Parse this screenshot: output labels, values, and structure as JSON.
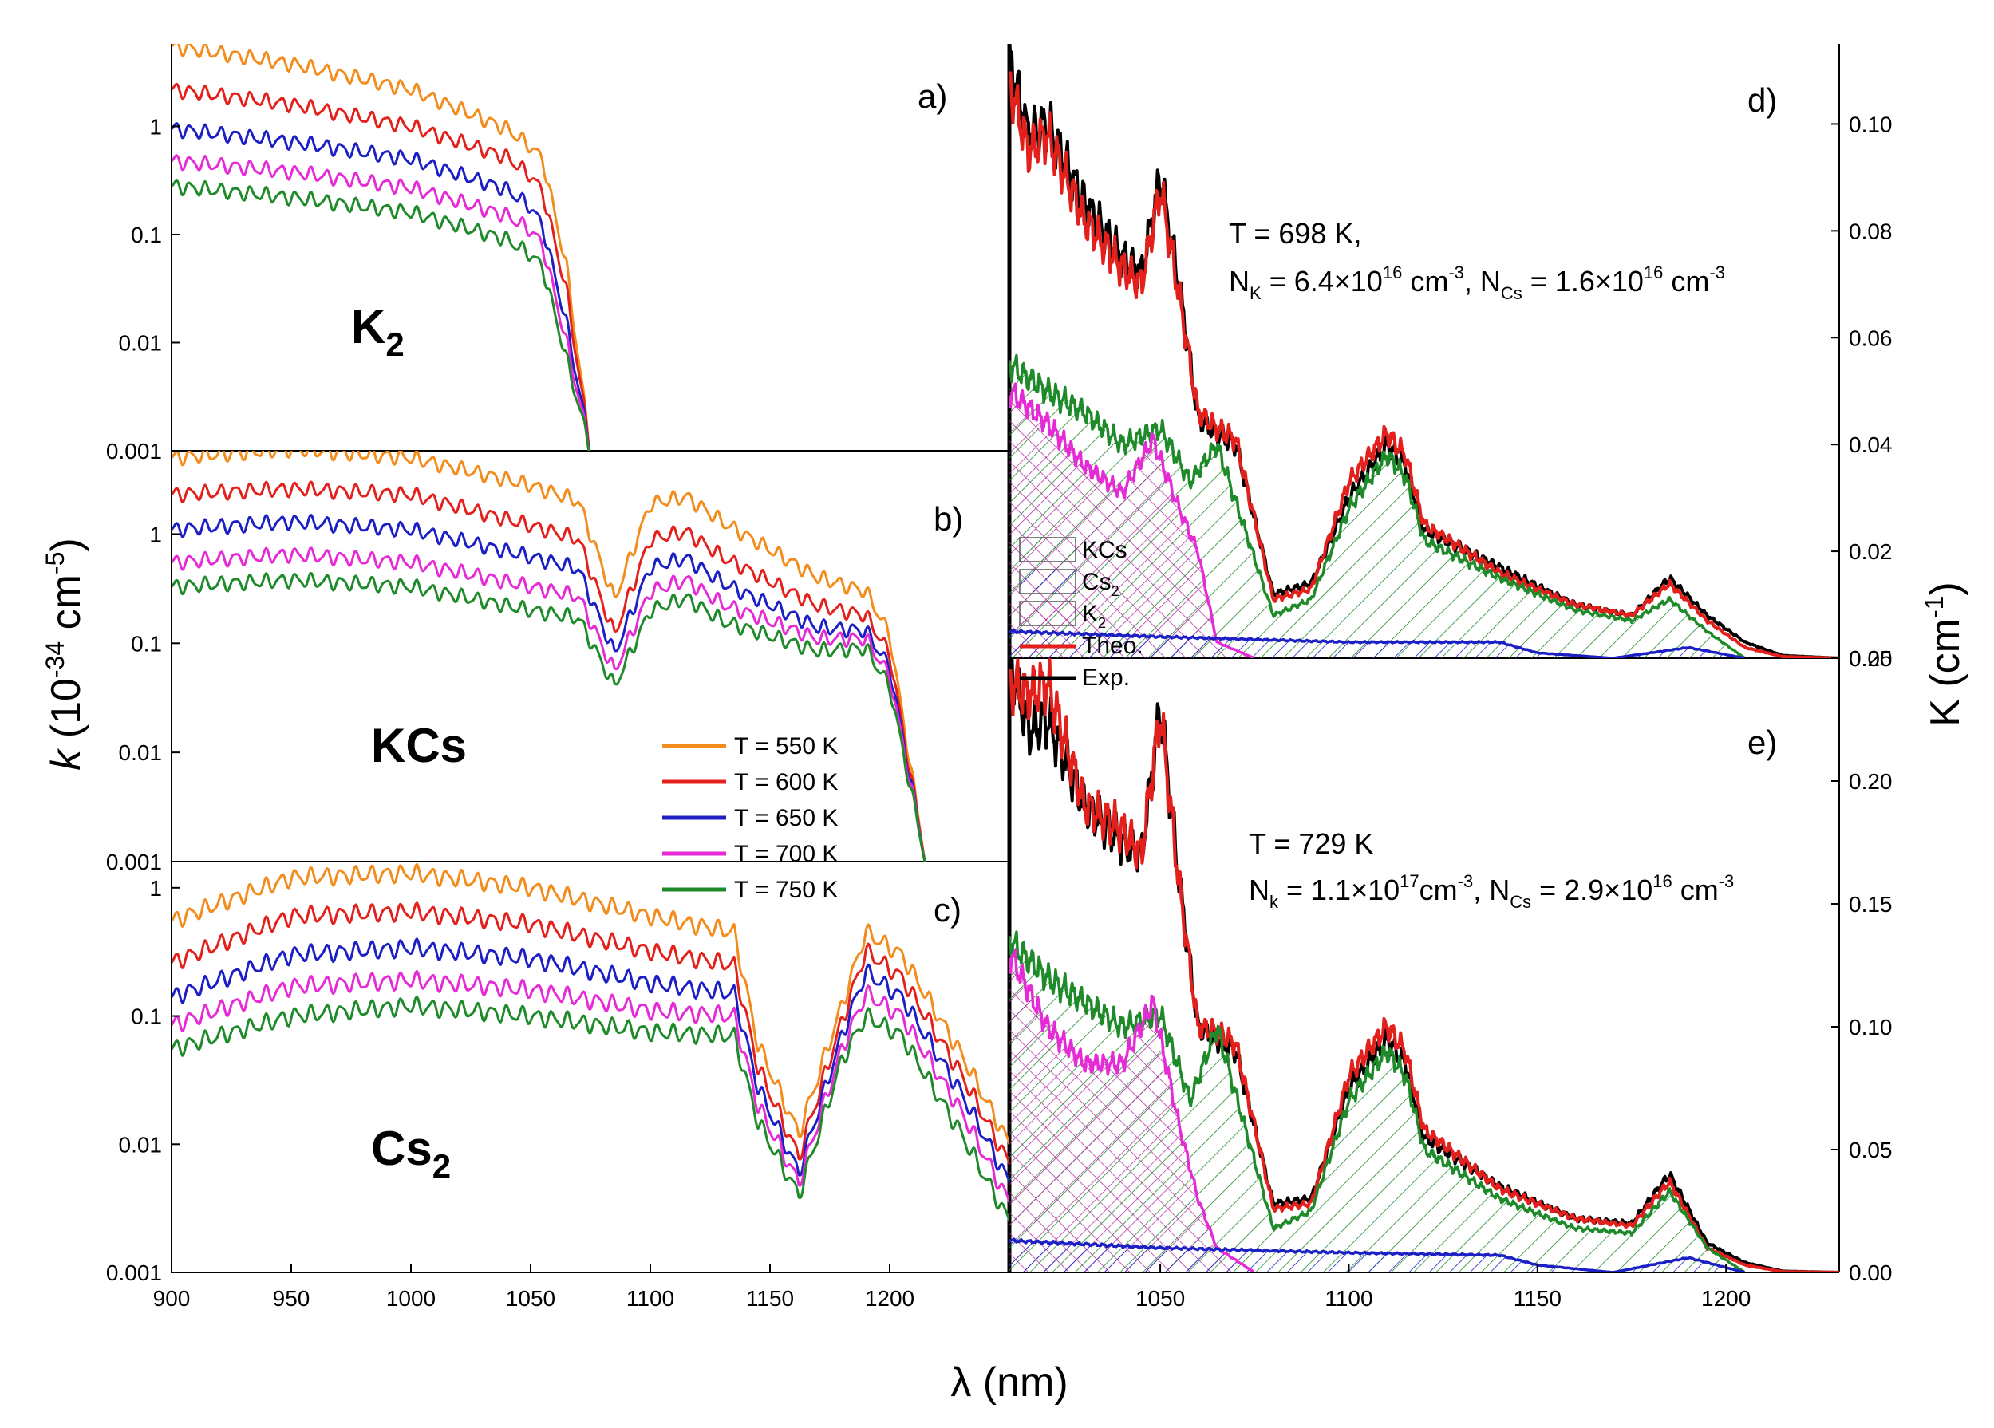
{
  "chart_data": [
    {
      "panel": "a)",
      "molecule_label": "K",
      "molecule_subscript": "2",
      "type": "line",
      "ylog": true,
      "xlim": [
        900,
        1250
      ],
      "ylim": [
        0.001,
        6
      ],
      "y_ticks": [
        "1",
        "0.1",
        "0.01",
        "0.001"
      ],
      "series": [
        {
          "name": "T = 550 K",
          "color": "#f28c1c",
          "x": [
            900,
            950,
            1000,
            1040,
            1050,
            1055,
            1065,
            1075
          ],
          "y": [
            5.5,
            3.8,
            2.2,
            0.95,
            0.65,
            0.5,
            0.05,
            0.001
          ]
        },
        {
          "name": "T = 600 K",
          "color": "#e3201b",
          "x": [
            900,
            950,
            1000,
            1040,
            1050,
            1055,
            1065,
            1075
          ],
          "y": [
            2.2,
            1.6,
            1.0,
            0.52,
            0.35,
            0.25,
            0.03,
            0.001
          ]
        },
        {
          "name": "T = 650 K",
          "color": "#1b1fc4",
          "x": [
            900,
            950,
            1000,
            1040,
            1050,
            1055,
            1065,
            1075
          ],
          "y": [
            0.95,
            0.72,
            0.5,
            0.26,
            0.18,
            0.12,
            0.015,
            0.001
          ]
        },
        {
          "name": "T = 700 K",
          "color": "#e52ad6",
          "x": [
            900,
            950,
            1000,
            1040,
            1050,
            1055,
            1065,
            1075
          ],
          "y": [
            0.48,
            0.38,
            0.27,
            0.15,
            0.11,
            0.08,
            0.01,
            0.001
          ]
        },
        {
          "name": "T = 750 K",
          "color": "#1f8a2a",
          "x": [
            900,
            950,
            1000,
            1040,
            1050,
            1055,
            1065,
            1075
          ],
          "y": [
            0.28,
            0.22,
            0.16,
            0.09,
            0.065,
            0.05,
            0.007,
            0.001
          ]
        }
      ]
    },
    {
      "panel": "b)",
      "molecule_label": "KCs",
      "type": "line",
      "ylog": true,
      "xlim": [
        900,
        1250
      ],
      "ylim": [
        0.001,
        6
      ],
      "y_ticks": [
        "1",
        "0.1",
        "0.01",
        "0.001"
      ],
      "legend": [
        "T = 550 K",
        "T = 600 K",
        "T = 650 K",
        "T = 700 K",
        "T = 750 K"
      ],
      "series": [
        {
          "name": "T = 550 K",
          "color": "#f28c1c",
          "x": [
            900,
            950,
            1000,
            1050,
            1070,
            1085,
            1100,
            1115,
            1130,
            1170,
            1190,
            1200,
            1215
          ],
          "y": [
            5.0,
            6.0,
            5.0,
            2.8,
            2.0,
            0.25,
            1.9,
            2.2,
            1.3,
            0.4,
            0.3,
            0.12,
            0.001
          ]
        },
        {
          "name": "T = 600 K",
          "color": "#e3201b",
          "x": [
            900,
            950,
            1000,
            1050,
            1070,
            1085,
            1100,
            1115,
            1130,
            1170,
            1190,
            1200,
            1215
          ],
          "y": [
            2.3,
            2.6,
            2.3,
            1.2,
            0.9,
            0.12,
            0.9,
            1.05,
            0.62,
            0.22,
            0.18,
            0.08,
            0.001
          ]
        },
        {
          "name": "T = 650 K",
          "color": "#1b1fc4",
          "x": [
            900,
            950,
            1000,
            1050,
            1070,
            1085,
            1100,
            1115,
            1130,
            1170,
            1190,
            1200,
            1215
          ],
          "y": [
            1.1,
            1.3,
            1.1,
            0.62,
            0.48,
            0.08,
            0.5,
            0.6,
            0.36,
            0.14,
            0.13,
            0.06,
            0.001
          ]
        },
        {
          "name": "T = 700 K",
          "color": "#e52ad6",
          "x": [
            900,
            950,
            1000,
            1050,
            1070,
            1085,
            1100,
            1115,
            1130,
            1170,
            1190,
            1200,
            1215
          ],
          "y": [
            0.55,
            0.65,
            0.55,
            0.33,
            0.27,
            0.055,
            0.3,
            0.38,
            0.23,
            0.11,
            0.11,
            0.05,
            0.001
          ]
        },
        {
          "name": "T = 750 K",
          "color": "#1f8a2a",
          "x": [
            900,
            950,
            1000,
            1050,
            1070,
            1085,
            1100,
            1115,
            1130,
            1170,
            1190,
            1200,
            1215
          ],
          "y": [
            0.33,
            0.38,
            0.33,
            0.2,
            0.17,
            0.04,
            0.2,
            0.26,
            0.16,
            0.085,
            0.09,
            0.04,
            0.001
          ]
        }
      ]
    },
    {
      "panel": "c)",
      "molecule_label": "Cs",
      "molecule_subscript": "2",
      "type": "line",
      "ylog": true,
      "xlim": [
        900,
        1250
      ],
      "ylim": [
        0.001,
        1.5
      ],
      "y_ticks": [
        "1",
        "0.1",
        "0.01",
        "0.001"
      ],
      "x_ticks": [
        "900",
        "950",
        "1000",
        "1050",
        "1100",
        "1150",
        "1200"
      ],
      "series": [
        {
          "name": "T = 550 K",
          "color": "#f28c1c",
          "x": [
            900,
            950,
            1000,
            1050,
            1100,
            1135,
            1145,
            1162,
            1180,
            1190,
            1205,
            1230,
            1250
          ],
          "y": [
            0.55,
            1.2,
            1.3,
            1.0,
            0.6,
            0.45,
            0.06,
            0.012,
            0.12,
            0.45,
            0.3,
            0.05,
            0.01
          ]
        },
        {
          "name": "T = 600 K",
          "color": "#e3201b",
          "x": [
            900,
            950,
            1000,
            1050,
            1100,
            1135,
            1145,
            1162,
            1180,
            1190,
            1205,
            1230,
            1250
          ],
          "y": [
            0.26,
            0.6,
            0.65,
            0.52,
            0.32,
            0.25,
            0.04,
            0.008,
            0.09,
            0.32,
            0.2,
            0.035,
            0.007
          ]
        },
        {
          "name": "T = 650 K",
          "color": "#1b1fc4",
          "x": [
            900,
            950,
            1000,
            1050,
            1100,
            1135,
            1145,
            1162,
            1180,
            1190,
            1205,
            1230,
            1250
          ],
          "y": [
            0.14,
            0.3,
            0.34,
            0.28,
            0.18,
            0.15,
            0.028,
            0.006,
            0.07,
            0.22,
            0.14,
            0.025,
            0.005
          ]
        },
        {
          "name": "T = 700 K",
          "color": "#e52ad6",
          "x": [
            900,
            950,
            1000,
            1050,
            1100,
            1135,
            1145,
            1162,
            1180,
            1190,
            1205,
            1230,
            1250
          ],
          "y": [
            0.085,
            0.17,
            0.19,
            0.16,
            0.11,
            0.1,
            0.02,
            0.005,
            0.055,
            0.15,
            0.1,
            0.018,
            0.0035
          ]
        },
        {
          "name": "T = 750 K",
          "color": "#1f8a2a",
          "x": [
            900,
            950,
            1000,
            1050,
            1100,
            1135,
            1145,
            1162,
            1180,
            1190,
            1205,
            1230,
            1250
          ],
          "y": [
            0.055,
            0.1,
            0.12,
            0.1,
            0.075,
            0.07,
            0.015,
            0.004,
            0.045,
            0.1,
            0.07,
            0.012,
            0.0025
          ]
        }
      ]
    },
    {
      "panel": "d)",
      "type": "line",
      "xlim": [
        1010,
        1230
      ],
      "ylim": [
        0,
        0.115
      ],
      "y_ticks": [
        "0.10",
        "0.08",
        "0.06",
        "0.04",
        "0.02",
        "0.00"
      ],
      "annotation": {
        "line1": "T = 698 K,",
        "N_sym": "N",
        "N_sub": "K",
        "N_eq": " = 6.4×10",
        "N_exp": "16",
        "N_unit": " cm",
        "N_unit_exp": "-3",
        "sep": ", N",
        "N2_sub": "Cs",
        "N2_eq": " = 1.6×10",
        "N2_exp": "16",
        "N2_unit": " cm",
        "N2_unit_exp": "-3"
      },
      "legend": [
        {
          "label": "KCs",
          "style": "hatch",
          "color": "#1f8a2a"
        },
        {
          "label": "Cs",
          "sub": "2",
          "style": "hatch",
          "color": "#1b1fc4"
        },
        {
          "label": "K",
          "sub": "2",
          "style": "crosshatch",
          "color": "#e52ad6"
        },
        {
          "label": "Theo.",
          "style": "line",
          "color": "#e3201b"
        },
        {
          "label": "Exp.",
          "style": "line",
          "color": "#000000"
        }
      ],
      "series": [
        {
          "name": "Exp.",
          "color": "#000000",
          "x": [
            1010,
            1015,
            1020,
            1030,
            1040,
            1045,
            1050,
            1055,
            1060,
            1065,
            1070,
            1080,
            1090,
            1100,
            1110,
            1115,
            1120,
            1140,
            1160,
            1175,
            1185,
            1195,
            1205,
            1215,
            1230
          ],
          "y": [
            0.112,
            0.098,
            0.1,
            0.085,
            0.075,
            0.072,
            0.09,
            0.07,
            0.045,
            0.042,
            0.04,
            0.012,
            0.014,
            0.03,
            0.04,
            0.036,
            0.024,
            0.017,
            0.01,
            0.008,
            0.015,
            0.008,
            0.003,
            0.0005,
            0.0
          ]
        },
        {
          "name": "Theo.",
          "color": "#e3201b",
          "x": [
            1010,
            1015,
            1020,
            1030,
            1040,
            1045,
            1050,
            1055,
            1060,
            1065,
            1070,
            1080,
            1090,
            1100,
            1110,
            1115,
            1120,
            1140,
            1160,
            1175,
            1185,
            1195,
            1205,
            1215,
            1230
          ],
          "y": [
            0.108,
            0.095,
            0.098,
            0.082,
            0.073,
            0.07,
            0.088,
            0.068,
            0.046,
            0.043,
            0.041,
            0.011,
            0.013,
            0.033,
            0.042,
            0.038,
            0.025,
            0.016,
            0.01,
            0.008,
            0.014,
            0.007,
            0.002,
            0.0003,
            0.0
          ]
        },
        {
          "name": "KCs",
          "color": "#1f8a2a",
          "x": [
            1010,
            1020,
            1030,
            1040,
            1050,
            1058,
            1065,
            1080,
            1090,
            1100,
            1110,
            1115,
            1120,
            1140,
            1160,
            1175,
            1185,
            1195,
            1205
          ],
          "y": [
            0.055,
            0.05,
            0.046,
            0.04,
            0.043,
            0.033,
            0.04,
            0.008,
            0.011,
            0.028,
            0.038,
            0.034,
            0.022,
            0.015,
            0.009,
            0.007,
            0.011,
            0.005,
            0.0
          ]
        },
        {
          "name": "K2",
          "color": "#e52ad6",
          "x": [
            1010,
            1020,
            1030,
            1040,
            1048,
            1055,
            1060,
            1065,
            1075
          ],
          "y": [
            0.05,
            0.044,
            0.036,
            0.031,
            0.041,
            0.028,
            0.02,
            0.003,
            0.0
          ]
        },
        {
          "name": "Cs2",
          "color": "#1b1fc4",
          "x": [
            1010,
            1050,
            1100,
            1140,
            1150,
            1170,
            1190,
            1205
          ],
          "y": [
            0.005,
            0.004,
            0.003,
            0.003,
            0.001,
            0.0,
            0.002,
            0.0
          ]
        }
      ]
    },
    {
      "panel": "e)",
      "type": "line",
      "xlim": [
        1010,
        1230
      ],
      "ylim": [
        0,
        0.25
      ],
      "x_ticks": [
        "1050",
        "1100",
        "1150",
        "1200"
      ],
      "y_ticks": [
        "0.25",
        "0.20",
        "0.15",
        "0.10",
        "0.05",
        "0.00"
      ],
      "annotation": {
        "line1": "T = 729 K",
        "N_sym": "N",
        "N_sub": "k",
        "N_eq": " = 1.1×10",
        "N_exp": "17",
        "N_unit": "cm",
        "N_unit_exp": "-3",
        "sep": ", N",
        "N2_sub": "Cs",
        "N2_eq": " = 2.9×10",
        "N2_exp": "16",
        "N2_unit": " cm",
        "N2_unit_exp": "-3"
      },
      "series": [
        {
          "name": "Exp.",
          "color": "#000000",
          "x": [
            1010,
            1015,
            1020,
            1030,
            1040,
            1045,
            1050,
            1055,
            1060,
            1065,
            1070,
            1080,
            1090,
            1100,
            1110,
            1115,
            1120,
            1140,
            1160,
            1175,
            1185,
            1195,
            1205,
            1215,
            1230
          ],
          "y": [
            0.25,
            0.22,
            0.225,
            0.19,
            0.175,
            0.17,
            0.23,
            0.16,
            0.1,
            0.095,
            0.09,
            0.028,
            0.03,
            0.075,
            0.095,
            0.085,
            0.055,
            0.035,
            0.022,
            0.02,
            0.04,
            0.012,
            0.004,
            0.0005,
            0.0
          ]
        },
        {
          "name": "Theo.",
          "color": "#e3201b",
          "x": [
            1010,
            1015,
            1020,
            1030,
            1040,
            1045,
            1050,
            1055,
            1060,
            1065,
            1070,
            1080,
            1090,
            1100,
            1110,
            1115,
            1120,
            1140,
            1160,
            1175,
            1185,
            1195,
            1205,
            1215,
            1230
          ],
          "y": [
            0.24,
            0.235,
            0.24,
            0.19,
            0.18,
            0.17,
            0.228,
            0.158,
            0.1,
            0.098,
            0.093,
            0.026,
            0.028,
            0.08,
            0.1,
            0.09,
            0.058,
            0.034,
            0.022,
            0.019,
            0.037,
            0.01,
            0.003,
            0.0003,
            0.0
          ]
        },
        {
          "name": "KCs",
          "color": "#1f8a2a",
          "x": [
            1010,
            1020,
            1030,
            1040,
            1050,
            1058,
            1065,
            1080,
            1090,
            1100,
            1110,
            1115,
            1120,
            1140,
            1160,
            1175,
            1185,
            1195,
            1205
          ],
          "y": [
            0.135,
            0.12,
            0.11,
            0.1,
            0.105,
            0.07,
            0.1,
            0.018,
            0.025,
            0.07,
            0.09,
            0.08,
            0.05,
            0.03,
            0.018,
            0.016,
            0.033,
            0.01,
            0.0
          ]
        },
        {
          "name": "K2",
          "color": "#e52ad6",
          "x": [
            1010,
            1020,
            1030,
            1040,
            1048,
            1055,
            1060,
            1065,
            1075
          ],
          "y": [
            0.13,
            0.1,
            0.085,
            0.085,
            0.11,
            0.06,
            0.03,
            0.01,
            0.0
          ]
        },
        {
          "name": "Cs2",
          "color": "#1b1fc4",
          "x": [
            1010,
            1050,
            1100,
            1140,
            1150,
            1170,
            1190,
            1205
          ],
          "y": [
            0.013,
            0.01,
            0.008,
            0.007,
            0.003,
            0.0,
            0.006,
            0.0
          ]
        }
      ]
    }
  ],
  "axes": {
    "left_ylabel": "k",
    "left_ylabel_units": "(10",
    "left_ylabel_exp1": "-34",
    "left_ylabel_unit2": " cm",
    "left_ylabel_exp2": "-5",
    "left_ylabel_close": ")",
    "right_ylabel": "K (cm",
    "right_ylabel_exp": "-1",
    "right_ylabel_close": ")",
    "xlabel": "λ (nm)"
  }
}
